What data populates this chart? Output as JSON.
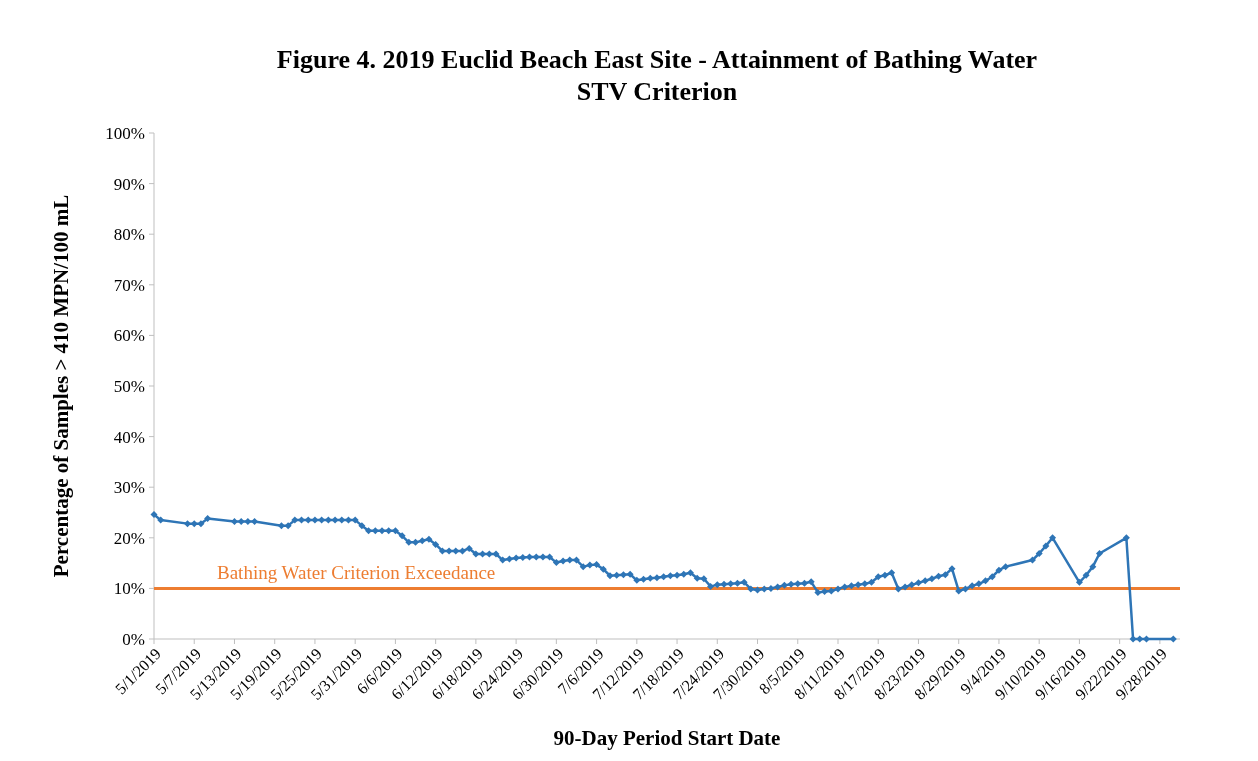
{
  "chart_data": {
    "type": "line",
    "title": "Figure 4. 2019 Euclid Beach East Site - Attainment of Bathing Water\nSTV Criterion",
    "xlabel": "90-Day Period Start Date",
    "ylabel": "Percentage of Samples > 410 MPN/100 mL",
    "xlim": [
      "2019-05-01",
      "2019-10-01"
    ],
    "xticks": [
      {
        "value": "2019-05-01",
        "label": "5/1/2019"
      },
      {
        "value": "2019-05-07",
        "label": "5/7/2019"
      },
      {
        "value": "2019-05-13",
        "label": "5/13/2019"
      },
      {
        "value": "2019-05-19",
        "label": "5/19/2019"
      },
      {
        "value": "2019-05-25",
        "label": "5/25/2019"
      },
      {
        "value": "2019-05-31",
        "label": "5/31/2019"
      },
      {
        "value": "2019-06-06",
        "label": "6/6/2019"
      },
      {
        "value": "2019-06-12",
        "label": "6/12/2019"
      },
      {
        "value": "2019-06-18",
        "label": "6/18/2019"
      },
      {
        "value": "2019-06-24",
        "label": "6/24/2019"
      },
      {
        "value": "2019-06-30",
        "label": "6/30/2019"
      },
      {
        "value": "2019-07-06",
        "label": "7/6/2019"
      },
      {
        "value": "2019-07-12",
        "label": "7/12/2019"
      },
      {
        "value": "2019-07-18",
        "label": "7/18/2019"
      },
      {
        "value": "2019-07-24",
        "label": "7/24/2019"
      },
      {
        "value": "2019-07-30",
        "label": "7/30/2019"
      },
      {
        "value": "2019-08-05",
        "label": "8/5/2019"
      },
      {
        "value": "2019-08-11",
        "label": "8/11/2019"
      },
      {
        "value": "2019-08-17",
        "label": "8/17/2019"
      },
      {
        "value": "2019-08-23",
        "label": "8/23/2019"
      },
      {
        "value": "2019-08-29",
        "label": "8/29/2019"
      },
      {
        "value": "2019-09-04",
        "label": "9/4/2019"
      },
      {
        "value": "2019-09-10",
        "label": "9/10/2019"
      },
      {
        "value": "2019-09-16",
        "label": "9/16/2019"
      },
      {
        "value": "2019-09-22",
        "label": "9/22/2019"
      },
      {
        "value": "2019-09-28",
        "label": "9/28/2019"
      }
    ],
    "ylim": [
      0,
      100
    ],
    "yticks": [
      {
        "value": 0,
        "label": "0%"
      },
      {
        "value": 10,
        "label": "10%"
      },
      {
        "value": 20,
        "label": "20%"
      },
      {
        "value": 30,
        "label": "30%"
      },
      {
        "value": 40,
        "label": "40%"
      },
      {
        "value": 50,
        "label": "50%"
      },
      {
        "value": 60,
        "label": "60%"
      },
      {
        "value": 70,
        "label": "70%"
      },
      {
        "value": 80,
        "label": "80%"
      },
      {
        "value": 90,
        "label": "90%"
      },
      {
        "value": 100,
        "label": "100%"
      }
    ],
    "grid": false,
    "marker": "diamond",
    "line_style": "solid",
    "ref_lines": [
      {
        "axis": "y",
        "value": 10,
        "label": "Bathing Water Criterion Exceedance",
        "color": "#ed7d31"
      }
    ],
    "series": [
      {
        "color": "#2e75b6",
        "x": [
          "2019-05-01",
          "2019-05-02",
          "2019-05-06",
          "2019-05-07",
          "2019-05-08",
          "2019-05-09",
          "2019-05-13",
          "2019-05-14",
          "2019-05-15",
          "2019-05-16",
          "2019-05-20",
          "2019-05-21",
          "2019-05-22",
          "2019-05-23",
          "2019-05-24",
          "2019-05-25",
          "2019-05-26",
          "2019-05-27",
          "2019-05-28",
          "2019-05-29",
          "2019-05-30",
          "2019-05-31",
          "2019-06-01",
          "2019-06-02",
          "2019-06-03",
          "2019-06-04",
          "2019-06-05",
          "2019-06-06",
          "2019-06-07",
          "2019-06-08",
          "2019-06-09",
          "2019-06-10",
          "2019-06-11",
          "2019-06-12",
          "2019-06-13",
          "2019-06-14",
          "2019-06-15",
          "2019-06-16",
          "2019-06-17",
          "2019-06-18",
          "2019-06-19",
          "2019-06-20",
          "2019-06-21",
          "2019-06-22",
          "2019-06-23",
          "2019-06-24",
          "2019-06-25",
          "2019-06-26",
          "2019-06-27",
          "2019-06-28",
          "2019-06-29",
          "2019-06-30",
          "2019-07-01",
          "2019-07-02",
          "2019-07-03",
          "2019-07-04",
          "2019-07-05",
          "2019-07-06",
          "2019-07-07",
          "2019-07-08",
          "2019-07-09",
          "2019-07-10",
          "2019-07-11",
          "2019-07-12",
          "2019-07-13",
          "2019-07-14",
          "2019-07-15",
          "2019-07-16",
          "2019-07-17",
          "2019-07-18",
          "2019-07-19",
          "2019-07-20",
          "2019-07-21",
          "2019-07-22",
          "2019-07-23",
          "2019-07-24",
          "2019-07-25",
          "2019-07-26",
          "2019-07-27",
          "2019-07-28",
          "2019-07-29",
          "2019-07-30",
          "2019-07-31",
          "2019-08-01",
          "2019-08-02",
          "2019-08-03",
          "2019-08-04",
          "2019-08-05",
          "2019-08-06",
          "2019-08-07",
          "2019-08-08",
          "2019-08-09",
          "2019-08-10",
          "2019-08-11",
          "2019-08-12",
          "2019-08-13",
          "2019-08-14",
          "2019-08-15",
          "2019-08-16",
          "2019-08-17",
          "2019-08-18",
          "2019-08-19",
          "2019-08-20",
          "2019-08-21",
          "2019-08-22",
          "2019-08-23",
          "2019-08-24",
          "2019-08-25",
          "2019-08-26",
          "2019-08-27",
          "2019-08-28",
          "2019-08-29",
          "2019-08-30",
          "2019-08-31",
          "2019-09-01",
          "2019-09-02",
          "2019-09-03",
          "2019-09-04",
          "2019-09-05",
          "2019-09-09",
          "2019-09-10",
          "2019-09-11",
          "2019-09-12",
          "2019-09-16",
          "2019-09-17",
          "2019-09-18",
          "2019-09-19",
          "2019-09-23",
          "2019-09-24",
          "2019-09-25",
          "2019-09-26",
          "2019-09-30"
        ],
        "values": [
          24.6,
          23.5,
          22.8,
          22.8,
          22.8,
          23.8,
          23.2,
          23.2,
          23.2,
          23.2,
          22.4,
          22.4,
          23.5,
          23.5,
          23.5,
          23.5,
          23.5,
          23.5,
          23.5,
          23.5,
          23.5,
          23.5,
          22.4,
          21.4,
          21.4,
          21.4,
          21.4,
          21.4,
          20.4,
          19.1,
          19.1,
          19.4,
          19.7,
          18.7,
          17.4,
          17.4,
          17.4,
          17.4,
          17.9,
          16.8,
          16.8,
          16.8,
          16.8,
          15.6,
          15.8,
          16.0,
          16.1,
          16.2,
          16.2,
          16.2,
          16.2,
          15.1,
          15.4,
          15.6,
          15.6,
          14.3,
          14.6,
          14.7,
          13.8,
          12.5,
          12.6,
          12.7,
          12.8,
          11.6,
          11.8,
          12.0,
          12.1,
          12.3,
          12.5,
          12.6,
          12.8,
          13.1,
          12.0,
          11.9,
          10.4,
          10.7,
          10.8,
          10.9,
          11.0,
          11.2,
          9.9,
          9.7,
          9.9,
          10.0,
          10.3,
          10.6,
          10.8,
          10.9,
          11.0,
          11.3,
          9.2,
          9.4,
          9.5,
          9.9,
          10.3,
          10.5,
          10.7,
          10.9,
          11.2,
          12.3,
          12.6,
          13.1,
          9.9,
          10.3,
          10.7,
          11.1,
          11.5,
          11.9,
          12.4,
          12.7,
          13.9,
          9.5,
          9.9,
          10.5,
          10.9,
          11.5,
          12.3,
          13.6,
          14.3,
          15.6,
          16.9,
          18.4,
          20.0,
          11.2,
          12.6,
          14.3,
          16.9,
          20.0,
          0,
          0,
          0,
          0
        ]
      }
    ]
  }
}
